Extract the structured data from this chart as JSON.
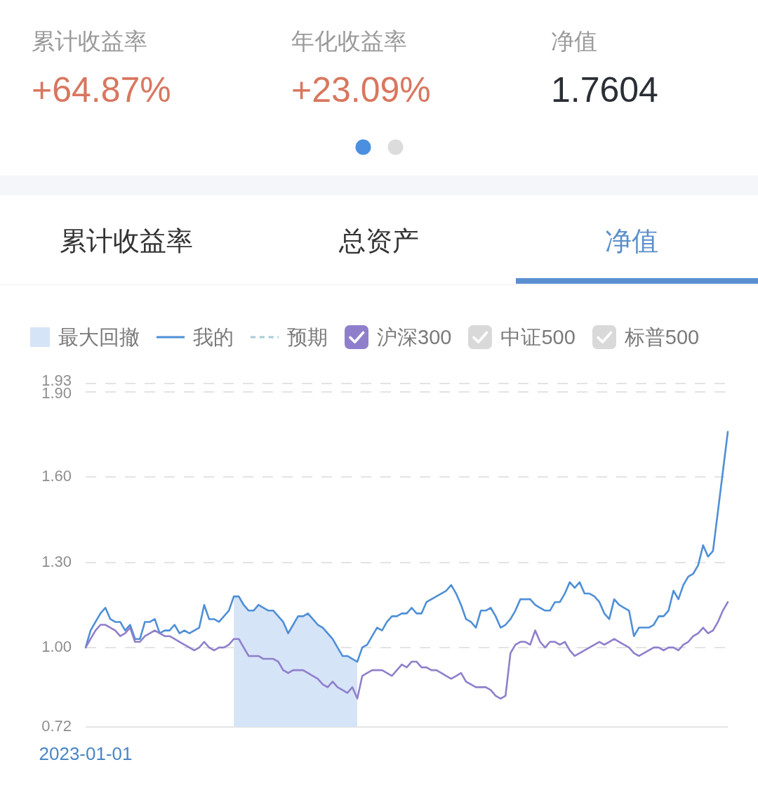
{
  "chart_data": {
    "type": "line",
    "annotations": [
      "累计收益率",
      "+64.87%",
      "年化收益率",
      "+23.09%",
      "净值",
      "1.7604",
      "累计收益率",
      "总资产",
      "净值"
    ],
    "categories": [
      "2023-01-01",
      null,
      null,
      null,
      null,
      null,
      null,
      null,
      null,
      null,
      null,
      null,
      null,
      null,
      null,
      null,
      null,
      null,
      null,
      null,
      null,
      null,
      null,
      null,
      null,
      null,
      null,
      null,
      null,
      null,
      null,
      null,
      null,
      null,
      null,
      null,
      null,
      null,
      null,
      null,
      null,
      null,
      null,
      null,
      null,
      null,
      null,
      null,
      null,
      null,
      null,
      null,
      null,
      null,
      null,
      null,
      null,
      null,
      null,
      null,
      null,
      null,
      null,
      null,
      null,
      null,
      null,
      null,
      null,
      null,
      null,
      null,
      null,
      null,
      null,
      null,
      null,
      null,
      null,
      null,
      null,
      null,
      null,
      null,
      null,
      null,
      null,
      null,
      null,
      null,
      null,
      null,
      null,
      null,
      null,
      null,
      null,
      null,
      null,
      null,
      null,
      null,
      null,
      null,
      null,
      null,
      null,
      null,
      null,
      null,
      null,
      null,
      null,
      null,
      null,
      null,
      null,
      null,
      null,
      null,
      null,
      null,
      null,
      null,
      null,
      null,
      null,
      null,
      null,
      null,
      null
    ],
    "series": [
      {
        "name": "最大回撤",
        "type": "area",
        "color": "#d6e4f7",
        "values": [
          null,
          null,
          null,
          null,
          null,
          null,
          null,
          null,
          null,
          null,
          null,
          null,
          null,
          null,
          null,
          null,
          null,
          null,
          null,
          null,
          null,
          null,
          null,
          null,
          null,
          null,
          null,
          null,
          null,
          null,
          1.18,
          1.18,
          1.15,
          1.13,
          1.13,
          1.15,
          1.14,
          1.13,
          1.13,
          1.11,
          1.09,
          1.05,
          1.08,
          1.11,
          1.11,
          1.12,
          1.1,
          1.08,
          1.07,
          1.05,
          1.03,
          1.0,
          0.97,
          0.97,
          0.96,
          0.95,
          null,
          null,
          null,
          null,
          null,
          null,
          null,
          null,
          null,
          null,
          null,
          null,
          null,
          null,
          null,
          null,
          null,
          null,
          null,
          null,
          null,
          null,
          null,
          null,
          null,
          null,
          null,
          null,
          null,
          null,
          null,
          null,
          null,
          null,
          null,
          null,
          null,
          null,
          null,
          null,
          null,
          null,
          null,
          null,
          null,
          null,
          null,
          null,
          null,
          null,
          null,
          null,
          null,
          null,
          null,
          null,
          null,
          null,
          null,
          null,
          null,
          null,
          null,
          null,
          null,
          null,
          null,
          null,
          null,
          null,
          null,
          null,
          null,
          null,
          null
        ]
      },
      {
        "name": "我的",
        "color": "#4f8fd6",
        "line_style": "solid",
        "values": [
          1.0,
          1.06,
          1.09,
          1.12,
          1.14,
          1.1,
          1.09,
          1.09,
          1.06,
          1.08,
          1.03,
          1.03,
          1.09,
          1.09,
          1.1,
          1.05,
          1.06,
          1.06,
          1.08,
          1.05,
          1.06,
          1.05,
          1.06,
          1.07,
          1.15,
          1.1,
          1.1,
          1.09,
          1.11,
          1.13,
          1.18,
          1.18,
          1.15,
          1.13,
          1.13,
          1.15,
          1.14,
          1.13,
          1.13,
          1.11,
          1.09,
          1.05,
          1.08,
          1.11,
          1.11,
          1.12,
          1.1,
          1.08,
          1.07,
          1.05,
          1.03,
          1.0,
          0.97,
          0.97,
          0.96,
          0.95,
          1.0,
          1.01,
          1.04,
          1.07,
          1.06,
          1.09,
          1.11,
          1.11,
          1.12,
          1.12,
          1.14,
          1.12,
          1.12,
          1.16,
          1.17,
          1.18,
          1.19,
          1.2,
          1.22,
          1.19,
          1.15,
          1.1,
          1.09,
          1.07,
          1.13,
          1.13,
          1.14,
          1.11,
          1.07,
          1.08,
          1.1,
          1.13,
          1.17,
          1.17,
          1.17,
          1.15,
          1.14,
          1.13,
          1.13,
          1.16,
          1.16,
          1.19,
          1.23,
          1.21,
          1.23,
          1.19,
          1.19,
          1.18,
          1.16,
          1.12,
          1.1,
          1.17,
          1.15,
          1.14,
          1.13,
          1.04,
          1.07,
          1.07,
          1.07,
          1.08,
          1.11,
          1.11,
          1.13,
          1.2,
          1.17,
          1.22,
          1.25,
          1.26,
          1.29,
          1.36,
          1.32,
          1.34,
          1.48,
          1.62,
          1.76
        ]
      },
      {
        "name": "预期",
        "color": "#a8cdd8",
        "line_style": "dashed",
        "values": [
          null,
          null,
          null,
          null,
          null,
          null,
          null,
          null,
          null,
          null,
          null,
          null,
          null,
          null,
          null,
          null,
          null,
          null,
          null,
          null,
          null,
          null,
          null,
          null,
          null,
          null,
          null,
          null,
          null,
          null,
          null,
          null,
          null,
          null,
          null,
          null,
          null,
          null,
          null,
          null,
          null,
          null,
          null,
          null,
          null,
          null,
          null,
          null,
          null,
          null,
          null,
          null,
          null,
          null,
          null,
          null,
          null,
          null,
          null,
          null,
          null,
          null,
          null,
          null,
          null,
          null,
          null,
          null,
          null,
          null,
          null,
          null,
          null,
          null,
          null,
          null,
          null,
          null,
          null,
          null,
          null,
          null,
          null,
          null,
          null,
          null,
          null,
          null,
          null,
          null,
          null,
          null,
          null,
          null,
          null,
          null,
          null,
          null,
          null,
          null,
          null,
          null,
          null,
          null,
          null,
          null,
          null,
          null,
          null,
          null,
          null,
          null,
          null,
          null,
          null,
          null,
          null,
          null,
          null,
          null,
          null,
          null,
          null,
          null,
          null,
          null,
          null,
          null,
          null,
          null,
          null
        ]
      },
      {
        "name": "沪深300",
        "color": "#8f7fcb",
        "values": [
          1.0,
          1.03,
          1.06,
          1.08,
          1.08,
          1.07,
          1.06,
          1.04,
          1.05,
          1.07,
          1.02,
          1.02,
          1.04,
          1.05,
          1.06,
          1.05,
          1.04,
          1.04,
          1.03,
          1.02,
          1.01,
          1.0,
          0.99,
          1.0,
          1.02,
          1.0,
          0.99,
          1.0,
          1.0,
          1.01,
          1.03,
          1.03,
          1.0,
          0.97,
          0.97,
          0.97,
          0.96,
          0.96,
          0.96,
          0.95,
          0.92,
          0.91,
          0.92,
          0.92,
          0.92,
          0.91,
          0.9,
          0.89,
          0.87,
          0.86,
          0.88,
          0.86,
          0.85,
          0.84,
          0.86,
          0.82,
          0.9,
          0.91,
          0.92,
          0.92,
          0.92,
          0.91,
          0.9,
          0.92,
          0.94,
          0.93,
          0.95,
          0.95,
          0.93,
          0.93,
          0.92,
          0.92,
          0.91,
          0.9,
          0.89,
          0.9,
          0.91,
          0.88,
          0.87,
          0.86,
          0.86,
          0.86,
          0.85,
          0.83,
          0.82,
          0.83,
          0.98,
          1.01,
          1.02,
          1.02,
          1.01,
          1.06,
          1.02,
          1.0,
          1.02,
          1.02,
          1.01,
          1.02,
          0.99,
          0.97,
          0.98,
          0.99,
          1.0,
          1.01,
          1.02,
          1.01,
          1.02,
          1.03,
          1.02,
          1.01,
          1.0,
          0.98,
          0.97,
          0.98,
          0.99,
          1.0,
          1.0,
          0.99,
          1.0,
          1.0,
          0.99,
          1.01,
          1.02,
          1.04,
          1.05,
          1.07,
          1.05,
          1.06,
          1.09,
          1.13,
          1.16
        ]
      },
      {
        "name": "中证500",
        "color": "#d9d9d9",
        "values": [
          null,
          null,
          null,
          null,
          null,
          null,
          null,
          null,
          null,
          null,
          null,
          null,
          null,
          null,
          null,
          null,
          null,
          null,
          null,
          null,
          null,
          null,
          null,
          null,
          null,
          null,
          null,
          null,
          null,
          null,
          null,
          null,
          null,
          null,
          null,
          null,
          null,
          null,
          null,
          null,
          null,
          null,
          null,
          null,
          null,
          null,
          null,
          null,
          null,
          null,
          null,
          null,
          null,
          null,
          null,
          null,
          null,
          null,
          null,
          null,
          null,
          null,
          null,
          null,
          null,
          null,
          null,
          null,
          null,
          null,
          null,
          null,
          null,
          null,
          null,
          null,
          null,
          null,
          null,
          null,
          null,
          null,
          null,
          null,
          null,
          null,
          null,
          null,
          null,
          null,
          null,
          null,
          null,
          null,
          null,
          null,
          null,
          null,
          null,
          null,
          null,
          null,
          null,
          null,
          null,
          null,
          null,
          null,
          null,
          null,
          null,
          null,
          null,
          null,
          null,
          null,
          null,
          null,
          null,
          null,
          null,
          null,
          null,
          null,
          null,
          null,
          null,
          null,
          null,
          null,
          null
        ]
      },
      {
        "name": "标普500",
        "color": "#d9d9d9",
        "values": [
          null,
          null,
          null,
          null,
          null,
          null,
          null,
          null,
          null,
          null,
          null,
          null,
          null,
          null,
          null,
          null,
          null,
          null,
          null,
          null,
          null,
          null,
          null,
          null,
          null,
          null,
          null,
          null,
          null,
          null,
          null,
          null,
          null,
          null,
          null,
          null,
          null,
          null,
          null,
          null,
          null,
          null,
          null,
          null,
          null,
          null,
          null,
          null,
          null,
          null,
          null,
          null,
          null,
          null,
          null,
          null,
          null,
          null,
          null,
          null,
          null,
          null,
          null,
          null,
          null,
          null,
          null,
          null,
          null,
          null,
          null,
          null,
          null,
          null,
          null,
          null,
          null,
          null,
          null,
          null,
          null,
          null,
          null,
          null,
          null,
          null,
          null,
          null,
          null,
          null,
          null,
          null,
          null,
          null,
          null,
          null,
          null,
          null,
          null,
          null,
          null,
          null,
          null,
          null,
          null,
          null,
          null,
          null,
          null,
          null,
          null,
          null,
          null,
          null,
          null,
          null,
          null,
          null,
          null,
          null,
          null,
          null,
          null,
          null,
          null,
          null,
          null,
          null,
          null,
          null,
          null
        ]
      }
    ],
    "ylim": [
      0.72,
      1.93
    ],
    "yticks": [
      0.72,
      {
        "value": 1,
        "label": "1.00"
      },
      {
        "value": 1.3,
        "label": "1.30"
      },
      {
        "value": 1.6,
        "label": "1.60"
      },
      {
        "value": 1.9,
        "label": "1.90"
      },
      1.93
    ],
    "grid": "y",
    "legend": "top left",
    "marker": "none"
  }
}
